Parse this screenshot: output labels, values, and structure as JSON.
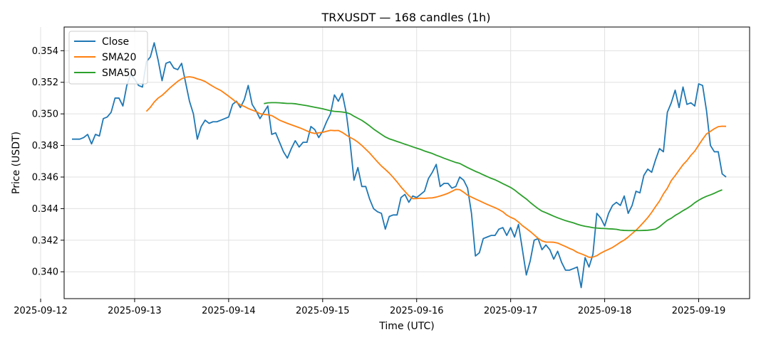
{
  "chart_data": {
    "type": "line",
    "title": "TRXUSDT — 168 candles (1h)",
    "xlabel": "Time (UTC)",
    "ylabel": "Price (USDT)",
    "x_start": "2025-09-12T08:00",
    "x_interval_hours": 1,
    "xlim": [
      "2025-09-12T06:00",
      "2025-09-19T13:00"
    ],
    "ylim": [
      0.3383,
      0.3555
    ],
    "x_ticks": [
      "2025-09-12",
      "2025-09-13",
      "2025-09-14",
      "2025-09-15",
      "2025-09-16",
      "2025-09-17",
      "2025-09-18",
      "2025-09-19"
    ],
    "y_ticks": [
      "0.340",
      "0.342",
      "0.344",
      "0.346",
      "0.348",
      "0.350",
      "0.352",
      "0.354"
    ],
    "grid": true,
    "legend_position": "upper-left",
    "series": [
      {
        "name": "Close",
        "color": "#1f77b4",
        "start_index": 0,
        "values": [
          0.3484,
          0.3484,
          0.3484,
          0.3485,
          0.3487,
          0.3481,
          0.3487,
          0.3486,
          0.3497,
          0.3498,
          0.3501,
          0.351,
          0.351,
          0.3505,
          0.3518,
          0.3525,
          0.3522,
          0.3518,
          0.3517,
          0.3533,
          0.3536,
          0.3545,
          0.3534,
          0.3521,
          0.3532,
          0.3533,
          0.3529,
          0.3528,
          0.3532,
          0.352,
          0.3508,
          0.35,
          0.3484,
          0.3492,
          0.3496,
          0.3494,
          0.3495,
          0.3495,
          0.3496,
          0.3497,
          0.3498,
          0.3506,
          0.3508,
          0.3504,
          0.3509,
          0.3518,
          0.3506,
          0.3502,
          0.3497,
          0.3501,
          0.3505,
          0.3487,
          0.3488,
          0.3482,
          0.3476,
          0.3472,
          0.3478,
          0.3483,
          0.3479,
          0.3482,
          0.3482,
          0.3492,
          0.349,
          0.3485,
          0.3489,
          0.3495,
          0.35,
          0.3512,
          0.3508,
          0.3513,
          0.3501,
          0.3482,
          0.3458,
          0.3466,
          0.3454,
          0.3454,
          0.3446,
          0.344,
          0.3438,
          0.3437,
          0.3427,
          0.3435,
          0.3436,
          0.3436,
          0.3447,
          0.3449,
          0.3444,
          0.3448,
          0.3447,
          0.3449,
          0.3451,
          0.3459,
          0.3463,
          0.3468,
          0.3454,
          0.3456,
          0.3456,
          0.3453,
          0.3454,
          0.346,
          0.3458,
          0.3453,
          0.3437,
          0.341,
          0.3412,
          0.3421,
          0.3422,
          0.3423,
          0.3423,
          0.3427,
          0.3428,
          0.3423,
          0.3428,
          0.3422,
          0.343,
          0.3414,
          0.3398,
          0.3407,
          0.342,
          0.3421,
          0.3414,
          0.3417,
          0.3414,
          0.3408,
          0.3413,
          0.3406,
          0.3401,
          0.3401,
          0.3402,
          0.3403,
          0.339,
          0.3409,
          0.3403,
          0.3411,
          0.3437,
          0.3434,
          0.3429,
          0.3437,
          0.3442,
          0.3444,
          0.3442,
          0.3448,
          0.3437,
          0.3442,
          0.3451,
          0.345,
          0.3461,
          0.3465,
          0.3463,
          0.3471,
          0.3478,
          0.3476,
          0.3501,
          0.3507,
          0.3515,
          0.3504,
          0.3517,
          0.3506,
          0.3507,
          0.3505,
          0.3519,
          0.3518,
          0.3502,
          0.348,
          0.3476,
          0.3476,
          0.3462,
          0.346
        ]
      },
      {
        "name": "SMA20",
        "color": "#ff7f0e",
        "start_index": 19,
        "values": [
          0.35016,
          0.35041,
          0.35075,
          0.351,
          0.35117,
          0.3514,
          0.35164,
          0.35185,
          0.35206,
          0.35222,
          0.35232,
          0.35235,
          0.35231,
          0.35222,
          0.35215,
          0.35205,
          0.35189,
          0.35174,
          0.3516,
          0.35148,
          0.3513,
          0.35112,
          0.35093,
          0.35073,
          0.35057,
          0.35047,
          0.35034,
          0.35024,
          0.35015,
          0.35001,
          0.34997,
          0.34994,
          0.34989,
          0.34975,
          0.3496,
          0.3495,
          0.3494,
          0.34931,
          0.34922,
          0.34913,
          0.34903,
          0.34892,
          0.34882,
          0.34876,
          0.3488,
          0.34883,
          0.3489,
          0.34896,
          0.34894,
          0.34895,
          0.34883,
          0.34866,
          0.34851,
          0.34838,
          0.34821,
          0.348,
          0.34776,
          0.34752,
          0.34724,
          0.34696,
          0.3467,
          0.34648,
          0.34625,
          0.34598,
          0.34569,
          0.34537,
          0.34509,
          0.34482,
          0.34463,
          0.34464,
          0.34466,
          0.34465,
          0.34467,
          0.34468,
          0.34473,
          0.3448,
          0.34488,
          0.34497,
          0.34509,
          0.34522,
          0.3452,
          0.34504,
          0.34485,
          0.34473,
          0.34461,
          0.3445,
          0.34438,
          0.34427,
          0.34416,
          0.34406,
          0.34394,
          0.3438,
          0.34359,
          0.34345,
          0.34334,
          0.34315,
          0.34292,
          0.34274,
          0.34255,
          0.34234,
          0.34212,
          0.34196,
          0.34188,
          0.34188,
          0.34187,
          0.34182,
          0.34171,
          0.3416,
          0.34148,
          0.34138,
          0.34123,
          0.34114,
          0.34104,
          0.34092,
          0.34093,
          0.34102,
          0.34118,
          0.34131,
          0.34142,
          0.34154,
          0.3417,
          0.34187,
          0.34201,
          0.3422,
          0.34242,
          0.34263,
          0.34288,
          0.34315,
          0.34343,
          0.34376,
          0.34413,
          0.34448,
          0.34493,
          0.34529,
          0.34577,
          0.34609,
          0.34644,
          0.34678,
          0.34704,
          0.34737,
          0.34764,
          0.34802,
          0.34839,
          0.34873,
          0.34889,
          0.34906,
          0.34919,
          0.34922,
          0.34921
        ]
      },
      {
        "name": "SMA50",
        "color": "#2ca02c",
        "start_index": 49,
        "values": [
          0.35065,
          0.3507,
          0.35071,
          0.35071,
          0.3507,
          0.35068,
          0.35066,
          0.35066,
          0.35064,
          0.3506,
          0.35056,
          0.35052,
          0.35047,
          0.35042,
          0.35037,
          0.35032,
          0.35026,
          0.3502,
          0.35016,
          0.35014,
          0.35012,
          0.35008,
          0.35,
          0.34985,
          0.34972,
          0.34959,
          0.34942,
          0.34924,
          0.34904,
          0.34887,
          0.3487,
          0.34854,
          0.34842,
          0.34834,
          0.34825,
          0.34817,
          0.34808,
          0.348,
          0.34791,
          0.34783,
          0.34775,
          0.34765,
          0.34757,
          0.34749,
          0.34738,
          0.34729,
          0.34719,
          0.3471,
          0.34701,
          0.34692,
          0.34686,
          0.34673,
          0.3466,
          0.34648,
          0.34636,
          0.34626,
          0.34614,
          0.34603,
          0.34592,
          0.34583,
          0.34571,
          0.34558,
          0.34546,
          0.34534,
          0.34518,
          0.34498,
          0.34479,
          0.34461,
          0.34439,
          0.34419,
          0.344,
          0.34384,
          0.34374,
          0.34363,
          0.34352,
          0.34342,
          0.34333,
          0.34324,
          0.34317,
          0.3431,
          0.34301,
          0.34294,
          0.34288,
          0.34284,
          0.34279,
          0.34277,
          0.34275,
          0.34274,
          0.34272,
          0.34271,
          0.34269,
          0.34264,
          0.34262,
          0.34261,
          0.34261,
          0.34261,
          0.34261,
          0.34262,
          0.34263,
          0.34266,
          0.3427,
          0.34285,
          0.34306,
          0.34326,
          0.34339,
          0.34357,
          0.34371,
          0.34387,
          0.34401,
          0.34417,
          0.34437,
          0.34453,
          0.34467,
          0.34478,
          0.34487,
          0.34497,
          0.34509,
          0.34519
        ]
      }
    ]
  }
}
